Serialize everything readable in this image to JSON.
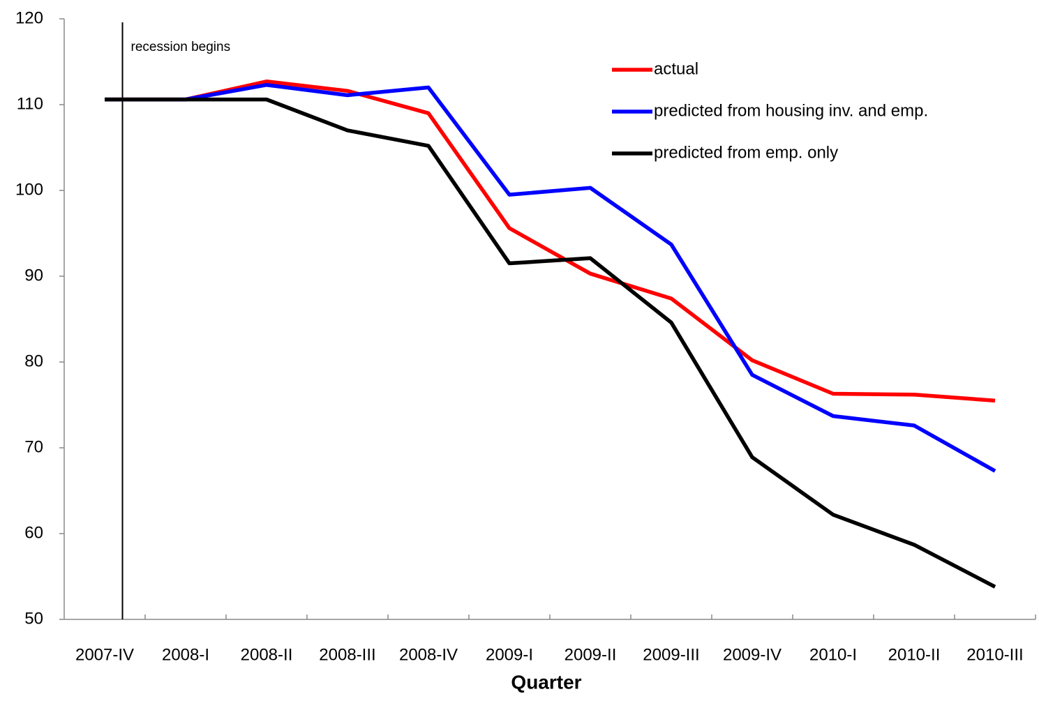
{
  "chart_data": {
    "type": "line",
    "x_label": "Quarter",
    "annotation": "recession begins",
    "categories": [
      "2007-IV",
      "2008-I",
      "2008-II",
      "2008-III",
      "2008-IV",
      "2009-I",
      "2009-II",
      "2009-III",
      "2009-IV",
      "2010-I",
      "2010-II",
      "2010-III"
    ],
    "series": [
      {
        "name": "actual",
        "color": "#ff0000",
        "values": [
          110.6,
          110.6,
          112.7,
          111.6,
          109.0,
          95.6,
          90.3,
          87.4,
          80.2,
          76.3,
          76.2,
          75.5
        ]
      },
      {
        "name": "predicted from housing inv. and emp.",
        "color": "#0000ff",
        "values": [
          110.6,
          110.6,
          112.3,
          111.1,
          112.0,
          99.5,
          100.3,
          93.7,
          78.5,
          73.7,
          72.6,
          67.3
        ]
      },
      {
        "name": "predicted from emp. only",
        "color": "#000000",
        "values": [
          110.6,
          110.6,
          110.6,
          107.0,
          105.2,
          91.5,
          92.1,
          84.6,
          68.9,
          62.2,
          58.7,
          53.8
        ]
      }
    ],
    "ylim": [
      50,
      120
    ],
    "yticks": [
      50,
      60,
      70,
      80,
      90,
      100,
      110,
      120
    ],
    "grid": false,
    "legend": "upper right"
  }
}
